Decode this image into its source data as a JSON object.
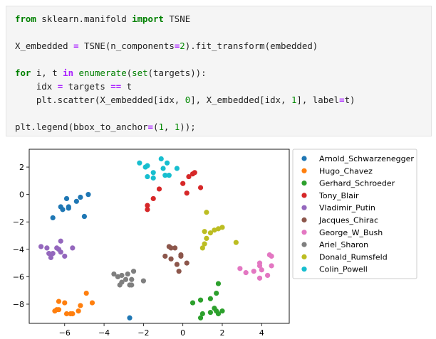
{
  "code_lines": [
    [
      {
        "t": "from",
        "c": "kw"
      },
      {
        "t": " sklearn.manifold ",
        "c": ""
      },
      {
        "t": "import",
        "c": "kw"
      },
      {
        "t": " TSNE",
        "c": ""
      }
    ],
    [],
    [
      {
        "t": "X_embedded ",
        "c": ""
      },
      {
        "t": "=",
        "c": "op"
      },
      {
        "t": " TSNE(n_components",
        "c": ""
      },
      {
        "t": "=",
        "c": "op"
      },
      {
        "t": "2",
        "c": "num"
      },
      {
        "t": ").fit_transform(embedded)",
        "c": ""
      }
    ],
    [],
    [
      {
        "t": "for",
        "c": "kw"
      },
      {
        "t": " i, t ",
        "c": ""
      },
      {
        "t": "in",
        "c": "op"
      },
      {
        "t": " ",
        "c": ""
      },
      {
        "t": "enumerate",
        "c": "bi"
      },
      {
        "t": "(",
        "c": ""
      },
      {
        "t": "set",
        "c": "bi"
      },
      {
        "t": "(targets)):",
        "c": ""
      }
    ],
    [
      {
        "t": "    idx ",
        "c": ""
      },
      {
        "t": "=",
        "c": "op"
      },
      {
        "t": " targets ",
        "c": ""
      },
      {
        "t": "==",
        "c": "op"
      },
      {
        "t": " t",
        "c": ""
      }
    ],
    [
      {
        "t": "    plt.scatter(X_embedded[idx, ",
        "c": ""
      },
      {
        "t": "0",
        "c": "num"
      },
      {
        "t": "], X_embedded[idx, ",
        "c": ""
      },
      {
        "t": "1",
        "c": "num"
      },
      {
        "t": "], label",
        "c": ""
      },
      {
        "t": "=",
        "c": "op"
      },
      {
        "t": "t)",
        "c": ""
      }
    ],
    [],
    [
      {
        "t": "plt.legend(bbox_to_anchor",
        "c": ""
      },
      {
        "t": "=",
        "c": "op"
      },
      {
        "t": "(",
        "c": ""
      },
      {
        "t": "1",
        "c": "num"
      },
      {
        "t": ", ",
        "c": ""
      },
      {
        "t": "1",
        "c": "num"
      },
      {
        "t": "));",
        "c": ""
      }
    ]
  ],
  "chart_data": {
    "type": "scatter",
    "xlim": [
      -7.8,
      5.4
    ],
    "ylim": [
      -9.4,
      3.3
    ],
    "xticks": [
      -6,
      -4,
      -2,
      0,
      2,
      4
    ],
    "yticks": [
      -8,
      -6,
      -4,
      -2,
      0,
      2
    ],
    "xtick_labels": [
      "−6",
      "−4",
      "−2",
      "0",
      "2",
      "4"
    ],
    "ytick_labels": [
      "−8",
      "−6",
      "−4",
      "−2",
      "0",
      "2"
    ],
    "grid": false,
    "legend_position": "outside-right",
    "series": [
      {
        "name": "Arnold_Schwarzenegger",
        "color": "#1f77b4",
        "points": [
          [
            -6.6,
            -1.7
          ],
          [
            -6.2,
            -0.9
          ],
          [
            -6.1,
            -1.1
          ],
          [
            -5.9,
            -0.3
          ],
          [
            -5.8,
            -0.9
          ],
          [
            -5.8,
            -1.0
          ],
          [
            -5.4,
            -0.5
          ],
          [
            -5.2,
            -0.2
          ],
          [
            -5.0,
            -1.6
          ],
          [
            -4.8,
            0.0
          ],
          [
            -2.7,
            -9.0
          ]
        ]
      },
      {
        "name": "Hugo_Chavez",
        "color": "#ff7f0e",
        "points": [
          [
            -6.5,
            -8.5
          ],
          [
            -6.4,
            -8.4
          ],
          [
            -6.3,
            -8.4
          ],
          [
            -6.3,
            -7.8
          ],
          [
            -6.0,
            -7.9
          ],
          [
            -5.9,
            -8.7
          ],
          [
            -5.7,
            -8.7
          ],
          [
            -5.6,
            -8.7
          ],
          [
            -5.3,
            -8.5
          ],
          [
            -5.2,
            -8.1
          ],
          [
            -4.9,
            -7.2
          ],
          [
            -4.6,
            -7.9
          ]
        ]
      },
      {
        "name": "Gerhard_Schroeder",
        "color": "#2ca02c",
        "points": [
          [
            0.5,
            -7.9
          ],
          [
            0.9,
            -9.0
          ],
          [
            0.9,
            -7.7
          ],
          [
            1.0,
            -8.7
          ],
          [
            1.4,
            -8.6
          ],
          [
            1.4,
            -7.6
          ],
          [
            1.6,
            -8.3
          ],
          [
            1.7,
            -7.2
          ],
          [
            1.7,
            -8.5
          ],
          [
            1.8,
            -8.7
          ],
          [
            1.8,
            -6.5
          ],
          [
            2.0,
            -8.5
          ]
        ]
      },
      {
        "name": "Tony_Blair",
        "color": "#d62728",
        "points": [
          [
            -1.8,
            -1.1
          ],
          [
            -1.8,
            -0.8
          ],
          [
            -1.5,
            -0.3
          ],
          [
            -1.2,
            0.4
          ],
          [
            0.0,
            0.8
          ],
          [
            0.2,
            0.1
          ],
          [
            0.3,
            1.3
          ],
          [
            0.5,
            1.5
          ],
          [
            0.6,
            1.6
          ],
          [
            0.9,
            0.5
          ]
        ]
      },
      {
        "name": "Vladimir_Putin",
        "color": "#9467bd",
        "points": [
          [
            -7.2,
            -3.8
          ],
          [
            -6.9,
            -3.9
          ],
          [
            -6.8,
            -4.3
          ],
          [
            -6.7,
            -4.6
          ],
          [
            -6.6,
            -4.3
          ],
          [
            -6.4,
            -3.9
          ],
          [
            -6.3,
            -4.0
          ],
          [
            -6.2,
            -3.4
          ],
          [
            -6.2,
            -4.2
          ],
          [
            -6.0,
            -4.5
          ],
          [
            -5.6,
            -3.9
          ]
        ]
      },
      {
        "name": "Jacques_Chirac",
        "color": "#8c564b",
        "points": [
          [
            -0.9,
            -4.5
          ],
          [
            -0.7,
            -3.8
          ],
          [
            -0.6,
            -3.9
          ],
          [
            -0.6,
            -4.7
          ],
          [
            -0.4,
            -3.9
          ],
          [
            -0.3,
            -5.1
          ],
          [
            -0.2,
            -5.6
          ],
          [
            -0.1,
            -4.4
          ],
          [
            -0.1,
            -4.5
          ],
          [
            0.2,
            -5.0
          ]
        ]
      },
      {
        "name": "George_W_Bush",
        "color": "#e377c2",
        "points": [
          [
            2.9,
            -5.4
          ],
          [
            3.2,
            -5.7
          ],
          [
            3.6,
            -5.6
          ],
          [
            3.9,
            -5.2
          ],
          [
            3.9,
            -5.0
          ],
          [
            3.9,
            -6.1
          ],
          [
            4.0,
            -5.5
          ],
          [
            4.3,
            -5.9
          ],
          [
            4.4,
            -4.4
          ],
          [
            4.5,
            -4.5
          ],
          [
            4.5,
            -5.2
          ]
        ]
      },
      {
        "name": "Ariel_Sharon",
        "color": "#7f7f7f",
        "points": [
          [
            -3.5,
            -5.8
          ],
          [
            -3.3,
            -6.0
          ],
          [
            -3.2,
            -6.6
          ],
          [
            -3.1,
            -5.9
          ],
          [
            -3.1,
            -6.4
          ],
          [
            -2.9,
            -6.2
          ],
          [
            -2.8,
            -5.8
          ],
          [
            -2.7,
            -6.6
          ],
          [
            -2.6,
            -6.2
          ],
          [
            -2.6,
            -6.6
          ],
          [
            -2.5,
            -5.6
          ],
          [
            -2.0,
            -6.3
          ]
        ]
      },
      {
        "name": "Donald_Rumsfeld",
        "color": "#bcbd22",
        "points": [
          [
            1.0,
            -3.9
          ],
          [
            1.1,
            -3.6
          ],
          [
            1.1,
            -2.7
          ],
          [
            1.2,
            -1.3
          ],
          [
            1.2,
            -3.2
          ],
          [
            1.4,
            -2.8
          ],
          [
            1.6,
            -2.6
          ],
          [
            1.8,
            -2.5
          ],
          [
            2.0,
            -2.4
          ],
          [
            2.7,
            -3.5
          ]
        ]
      },
      {
        "name": "Colin_Powell",
        "color": "#17becf",
        "points": [
          [
            -2.2,
            2.3
          ],
          [
            -1.9,
            2.0
          ],
          [
            -1.8,
            2.1
          ],
          [
            -1.8,
            1.3
          ],
          [
            -1.5,
            1.6
          ],
          [
            -1.5,
            1.2
          ],
          [
            -1.1,
            2.6
          ],
          [
            -1.0,
            1.9
          ],
          [
            -0.9,
            1.4
          ],
          [
            -0.8,
            2.3
          ],
          [
            -0.7,
            1.4
          ],
          [
            -0.3,
            1.9
          ]
        ]
      }
    ]
  }
}
